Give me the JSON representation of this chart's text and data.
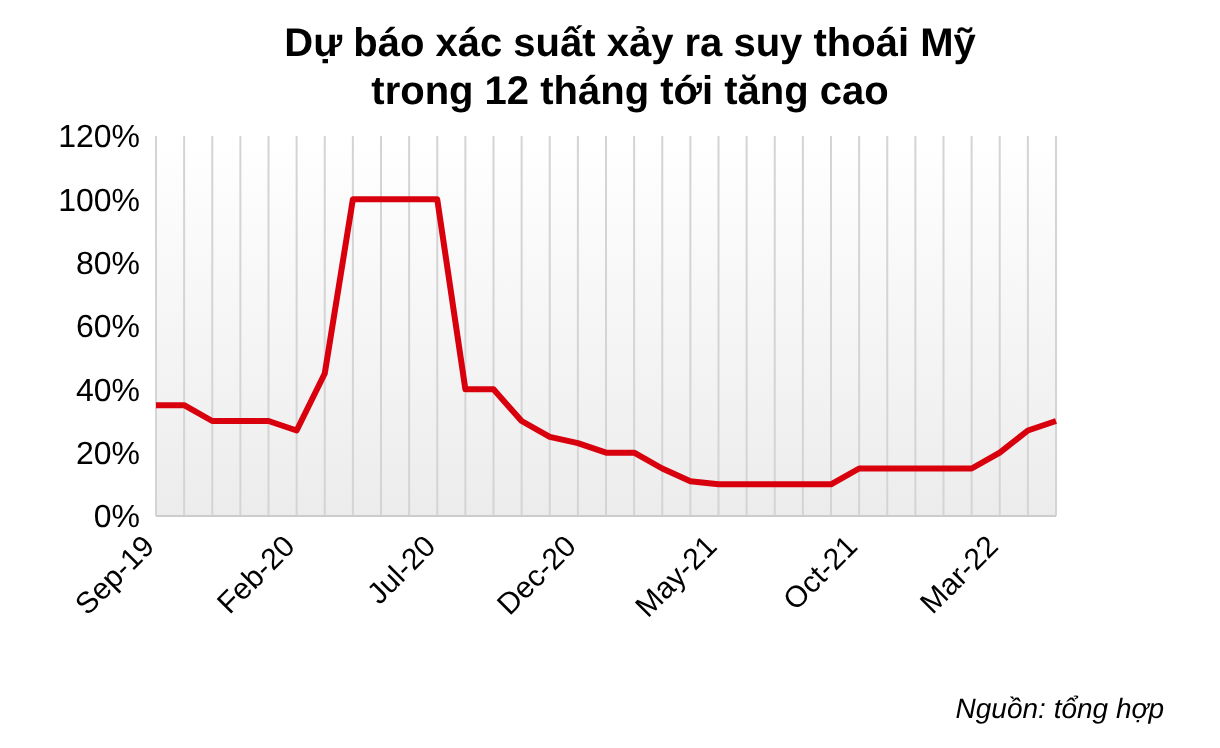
{
  "chart_data": {
    "type": "line",
    "title": "Dự báo xác suất xảy ra suy thoái Mỹ\ntrong 12 tháng tới tăng cao",
    "categories": [
      "Sep-19",
      null,
      null,
      null,
      null,
      "Feb-20",
      null,
      null,
      null,
      null,
      "Jul-20",
      null,
      null,
      null,
      null,
      "Dec-20",
      null,
      null,
      null,
      null,
      "May-21",
      null,
      null,
      null,
      null,
      "Oct-21",
      null,
      null,
      null,
      null,
      "Mar-22",
      null,
      null
    ],
    "series": [
      {
        "color": "#d9000d",
        "values": [
          35,
          35,
          30,
          30,
          30,
          27,
          45,
          100,
          100,
          100,
          100,
          40,
          40,
          30,
          25,
          23,
          20,
          20,
          15,
          11,
          10,
          10,
          10,
          10,
          10,
          15,
          15,
          15,
          15,
          15,
          20,
          27,
          30
        ]
      }
    ],
    "ylim": [
      0,
      120
    ],
    "yticks": [
      {
        "value": 0,
        "label": "0%"
      },
      {
        "value": 20,
        "label": "20%"
      },
      {
        "value": 40,
        "label": "40%"
      },
      {
        "value": 60,
        "label": "60%"
      },
      {
        "value": 80,
        "label": "80%"
      },
      {
        "value": 100,
        "label": "100%"
      },
      {
        "value": 120,
        "label": "120%"
      }
    ],
    "grid": "x",
    "marker": "none",
    "line_style": "solid",
    "annotations": [
      "Nguồn: tổng hợp"
    ]
  }
}
